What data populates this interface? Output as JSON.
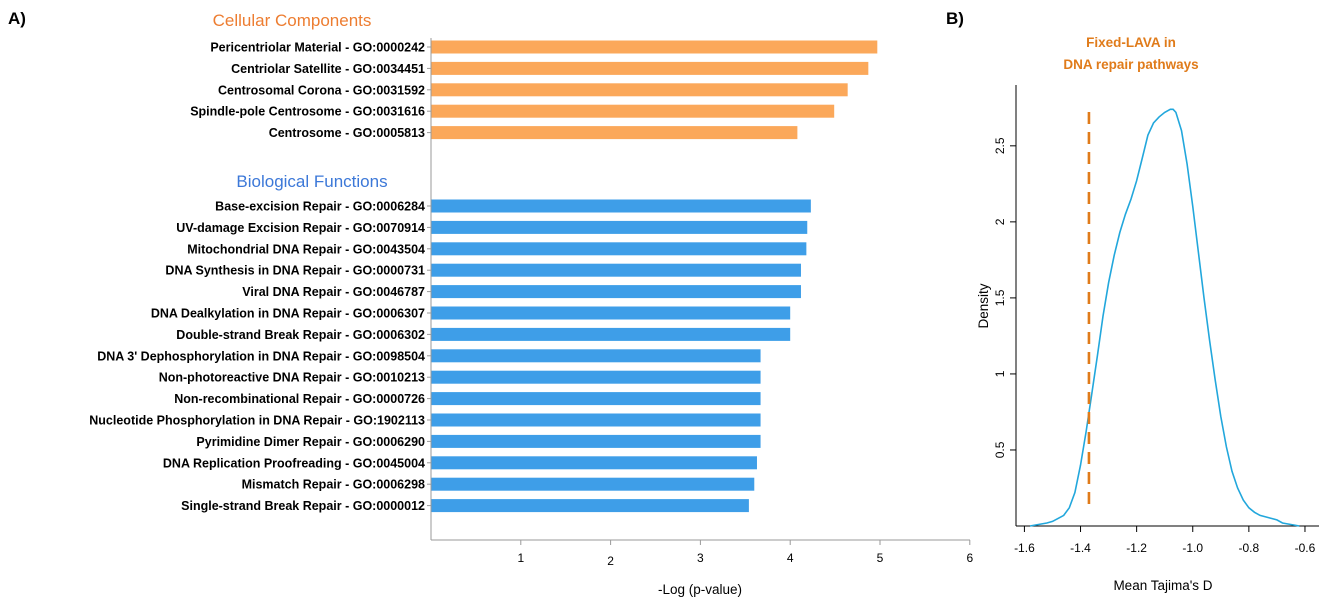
{
  "panel_labels": {
    "a": "A)",
    "b": "B)"
  },
  "colors": {
    "cellular": "#fba85a",
    "biological": "#3e9ee8",
    "cellular_title": "#ed7d31",
    "biological_title": "#3c78d8",
    "density_line": "#22a7dc",
    "dashed_line": "#e07b1a",
    "annotation": "#e07b1a"
  },
  "chart_data": [
    {
      "type": "bar",
      "orientation": "horizontal",
      "groups": [
        {
          "title": "Cellular Components",
          "categories": [
            "Pericentriolar Material - GO:0000242",
            "Centriolar Satellite - GO:0034451",
            "Centrosomal Corona - GO:0031592",
            "Spindle-pole Centrosome - GO:0031616",
            "Centrosome - GO:0005813"
          ],
          "values": [
            4.97,
            4.87,
            4.64,
            4.49,
            4.08
          ]
        },
        {
          "title": "Biological Functions",
          "categories": [
            "Base-excision Repair - GO:0006284",
            "UV-damage Excision Repair - GO:0070914",
            "Mitochondrial DNA Repair - GO:0043504",
            "DNA Synthesis in DNA Repair - GO:0000731",
            "Viral DNA Repair - GO:0046787",
            "DNA Dealkylation in DNA Repair - GO:0006307",
            "Double-strand Break Repair - GO:0006302",
            "DNA 3' Dephosphorylation in DNA Repair - GO:0098504",
            "Non-photoreactive DNA Repair - GO:0010213",
            "Non-recombinational Repair - GO:0000726",
            "Nucleotide Phosphorylation in DNA Repair - GO:1902113",
            "Pyrimidine Dimer Repair - GO:0006290",
            "DNA Replication Proofreading - GO:0045004",
            "Mismatch Repair - GO:0006298",
            "Single-strand Break Repair - GO:0000012"
          ],
          "values": [
            4.23,
            4.19,
            4.18,
            4.12,
            4.12,
            4.0,
            4.0,
            3.67,
            3.67,
            3.67,
            3.67,
            3.67,
            3.63,
            3.6,
            3.54
          ]
        }
      ],
      "xlabel": "-Log (p-value)",
      "xlim": [
        0,
        6
      ],
      "xticks": [
        1,
        2,
        3,
        4,
        5,
        6
      ],
      "grid": false
    },
    {
      "type": "line",
      "xlabel": "Mean Tajima's D",
      "ylabel": "Density",
      "xlim": [
        -1.63,
        -0.55
      ],
      "ylim": [
        0,
        2.9
      ],
      "xticks": [
        -1.6,
        -1.4,
        -1.2,
        -1.0,
        -0.8,
        -0.6
      ],
      "xtick_labels": [
        "-1.6",
        "-1.4",
        "-1.2",
        "-1.0",
        "-0.8",
        "-0.6"
      ],
      "yticks": [
        0.5,
        1,
        1.5,
        2,
        2.5
      ],
      "ytick_labels": [
        "0.5",
        "1",
        "1.5",
        "2",
        "2.5"
      ],
      "x": [
        -1.58,
        -1.55,
        -1.52,
        -1.5,
        -1.48,
        -1.46,
        -1.44,
        -1.42,
        -1.4,
        -1.38,
        -1.36,
        -1.34,
        -1.32,
        -1.3,
        -1.28,
        -1.26,
        -1.24,
        -1.22,
        -1.2,
        -1.18,
        -1.16,
        -1.14,
        -1.12,
        -1.1,
        -1.08,
        -1.07,
        -1.06,
        -1.04,
        -1.02,
        -1.0,
        -0.98,
        -0.96,
        -0.94,
        -0.92,
        -0.9,
        -0.88,
        -0.86,
        -0.84,
        -0.82,
        -0.8,
        -0.78,
        -0.76,
        -0.74,
        -0.72,
        -0.7,
        -0.68,
        -0.65,
        -0.62
      ],
      "y": [
        0.0,
        0.01,
        0.02,
        0.03,
        0.05,
        0.07,
        0.12,
        0.22,
        0.4,
        0.62,
        0.87,
        1.12,
        1.38,
        1.6,
        1.78,
        1.93,
        2.05,
        2.15,
        2.27,
        2.42,
        2.57,
        2.65,
        2.69,
        2.72,
        2.74,
        2.74,
        2.72,
        2.6,
        2.38,
        2.1,
        1.8,
        1.5,
        1.22,
        0.96,
        0.72,
        0.52,
        0.36,
        0.25,
        0.17,
        0.12,
        0.09,
        0.07,
        0.06,
        0.05,
        0.04,
        0.02,
        0.01,
        0.0
      ],
      "reference_line": {
        "x": -1.37,
        "style": "dashed"
      },
      "annotation": {
        "lines": [
          "Fixed-LAVA in",
          "DNA repair pathways"
        ]
      }
    }
  ]
}
